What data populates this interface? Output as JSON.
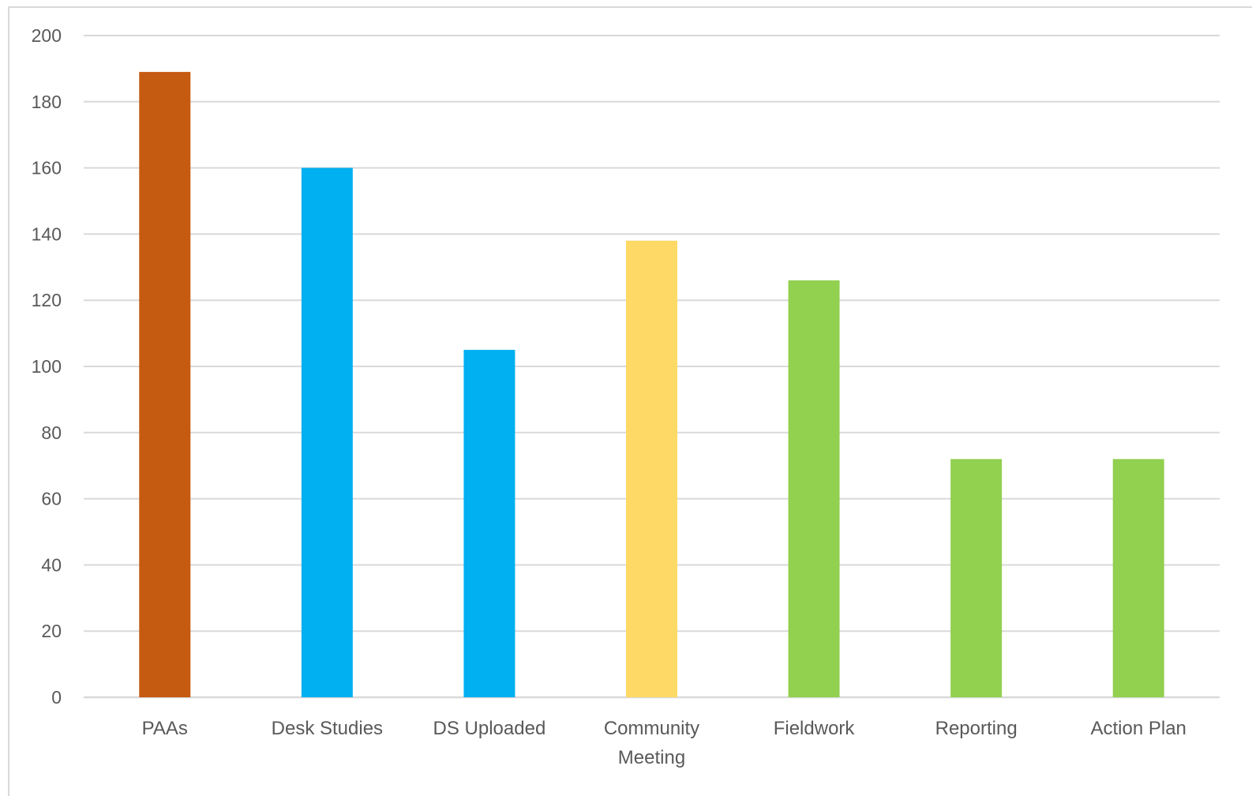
{
  "chart_data": {
    "type": "bar",
    "categories": [
      "PAAs",
      "Desk Studies",
      "DS Uploaded",
      "Community Meeting",
      "Fieldwork",
      "Reporting",
      "Action Plan"
    ],
    "category_lines": [
      [
        "PAAs"
      ],
      [
        "Desk Studies"
      ],
      [
        "DS Uploaded"
      ],
      [
        "Community",
        "Meeting"
      ],
      [
        "Fieldwork"
      ],
      [
        "Reporting"
      ],
      [
        "Action Plan"
      ]
    ],
    "values": [
      189,
      160,
      105,
      138,
      126,
      72,
      72
    ],
    "colors": [
      "#C55A11",
      "#00B0F0",
      "#00B0F0",
      "#FFD966",
      "#92D050",
      "#92D050",
      "#92D050"
    ],
    "ylim": [
      0,
      200
    ],
    "yticks": [
      0,
      20,
      40,
      60,
      80,
      100,
      120,
      140,
      160,
      180,
      200
    ],
    "grid": true,
    "gridline_color": "#d9d9d9"
  }
}
